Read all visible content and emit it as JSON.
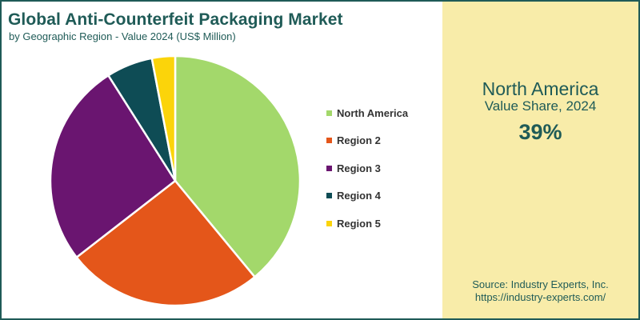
{
  "title": "Global Anti-Counterfeit Packaging Market",
  "subtitle": "by Geographic Region - Value 2024 (US$ Million)",
  "highlight": {
    "region": "North America",
    "caption": "Value Share, 2024",
    "value": "39%"
  },
  "source": {
    "line": "Source: Industry Experts, Inc.",
    "url": "https://industry-experts.com/"
  },
  "colors": {
    "title": "#1f5b57",
    "panel_background": "#f8eca9",
    "border": "#1f5b57"
  },
  "chart_data": {
    "type": "pie",
    "labels": [
      "North America",
      "Region 2",
      "Region 3",
      "Region 4",
      "Region 5"
    ],
    "values": [
      39,
      25.5,
      26.5,
      6,
      3
    ],
    "colors": [
      "#a3d86b",
      "#e4561a",
      "#6a1570",
      "#0e4c55",
      "#fbd40a"
    ],
    "legend_position": "right"
  }
}
